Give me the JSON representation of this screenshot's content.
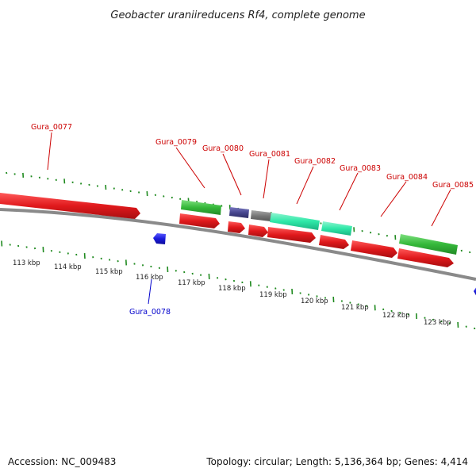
{
  "title": "Geobacter uraniireducens Rf4, complete genome",
  "footer": {
    "accession": "Accession: NC_009483",
    "summary": "Topology: circular; Length: 5,136,364 bp; Genes: 4,414"
  },
  "colors": {
    "forward_cds": "#e0191c",
    "reverse_cds": "#1a1adb",
    "green_feature": "#35b83a",
    "purple_feature": "#47468f",
    "gray_feature": "#777777",
    "teal_feature": "#2ee8a8",
    "tick": "#1f8a1f",
    "backbone": "#8a8a8a",
    "label_red": "#cc0000",
    "label_blue": "#0000cc"
  },
  "scale_labels": [
    "113 kbp",
    "114 kbp",
    "115 kbp",
    "116 kbp",
    "117 kbp",
    "118 kbp",
    "119 kbp",
    "120 kbp",
    "121 kbp",
    "122 kbp",
    "123 kbp"
  ],
  "gene_labels": [
    {
      "name": "Gura_0077",
      "strand": "forward"
    },
    {
      "name": "Gura_0078",
      "strand": "reverse"
    },
    {
      "name": "Gura_0079",
      "strand": "forward"
    },
    {
      "name": "Gura_0080",
      "strand": "forward"
    },
    {
      "name": "Gura_0081",
      "strand": "forward"
    },
    {
      "name": "Gura_0082",
      "strand": "forward"
    },
    {
      "name": "Gura_0083",
      "strand": "forward"
    },
    {
      "name": "Gura_0084",
      "strand": "forward"
    },
    {
      "name": "Gura_0085",
      "strand": "forward"
    }
  ]
}
